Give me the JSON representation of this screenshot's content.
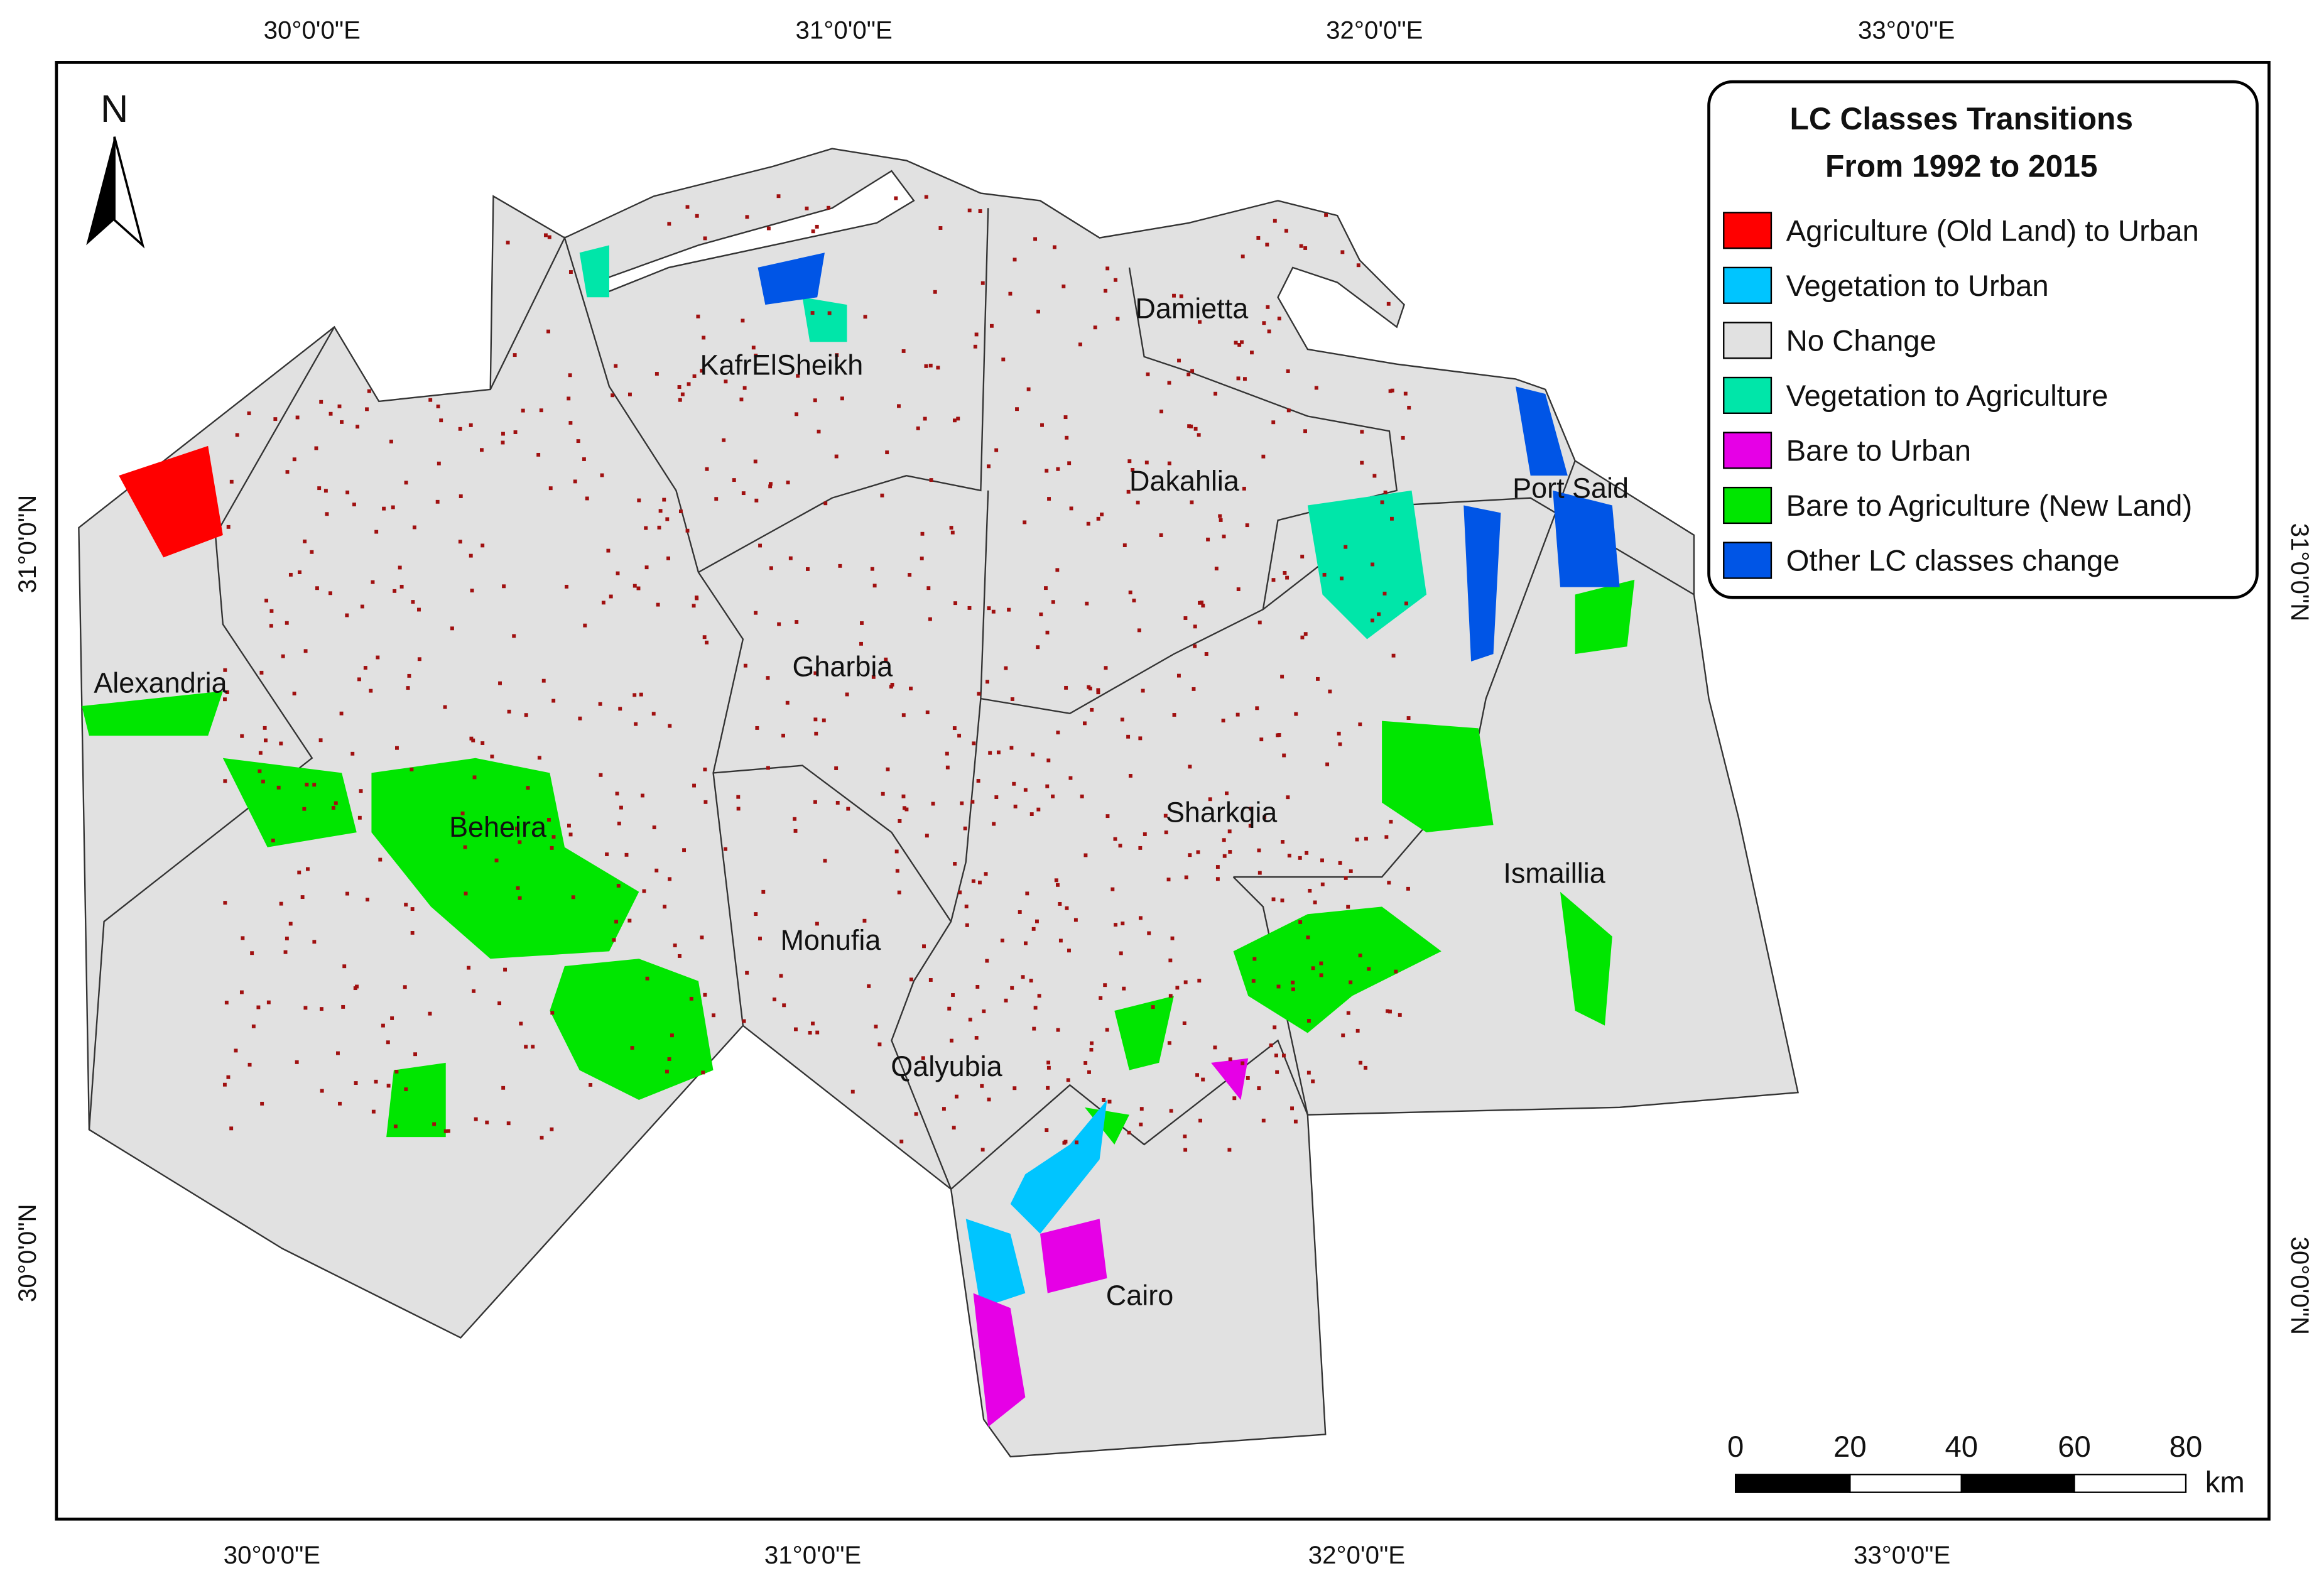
{
  "north": "N",
  "graticule": {
    "top": [
      "30°0'0\"E",
      "31°0'0\"E",
      "32°0'0\"E",
      "33°0'0\"E"
    ],
    "bottom": [
      "30°0'0\"E",
      "31°0'0\"E",
      "32°0'0\"E",
      "33°0'0\"E"
    ],
    "left": [
      "31°0'0\"N",
      "30°0'0\"N"
    ],
    "right": [
      "31°0'0\"N",
      "30°0'0\"N"
    ]
  },
  "legend": {
    "title": [
      "LC Classes Transitions",
      "From 1992 to 2015"
    ],
    "items": [
      {
        "label": "Agriculture (Old Land) to Urban",
        "color": "#ff0000"
      },
      {
        "label": "Vegetation to Urban",
        "color": "#00c5ff"
      },
      {
        "label": "No Change",
        "color": "#e1e1e1"
      },
      {
        "label": "Vegetation to Agriculture",
        "color": "#00e6a9"
      },
      {
        "label": "Bare to Urban",
        "color": "#e600e6"
      },
      {
        "label": "Bare to Agriculture (New Land)",
        "color": "#00e600"
      },
      {
        "label": "Other LC classes change",
        "color": "#0055e6"
      }
    ]
  },
  "governorates": [
    "KafrElSheikh",
    "Damietta",
    "Dakahlia",
    "Port Said",
    "Alexandria",
    "Gharbia",
    "Beheira",
    "Sharkqia",
    "Ismaillia",
    "Monufia",
    "Qalyubia",
    "Cairo"
  ],
  "scale_bar": {
    "labels": [
      "0",
      "20",
      "40",
      "60",
      "80"
    ],
    "unit": "km"
  }
}
